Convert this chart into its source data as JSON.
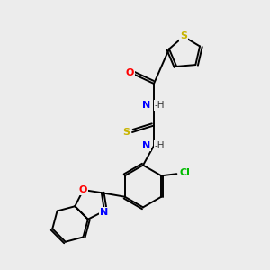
{
  "background_color": "#ececec",
  "bond_color": "#000000",
  "atom_colors": {
    "S": "#c8b400",
    "O": "#ff0000",
    "N": "#0000ff",
    "Cl": "#00bb00",
    "C": "#000000",
    "H": "#000000"
  },
  "lw": 1.4,
  "fs": 8.0
}
